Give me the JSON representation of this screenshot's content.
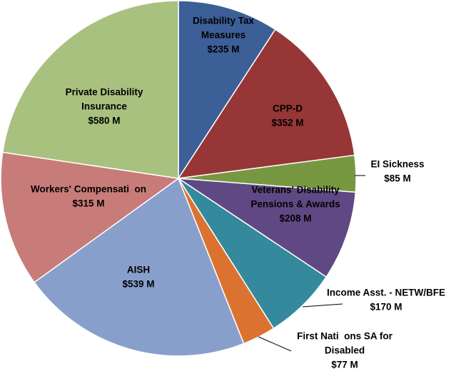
{
  "chart_data": {
    "type": "pie",
    "title": "",
    "slices": [
      {
        "label_lines": [
          "Disability Tax",
          "Measures"
        ],
        "value_label": "$235 M",
        "value": 235,
        "color": "#3C5F97"
      },
      {
        "label_lines": [
          "CPP-D"
        ],
        "value_label": "$352 M",
        "value": 352,
        "color": "#963636"
      },
      {
        "label_lines": [
          "EI Sickness"
        ],
        "value_label": "$85 M",
        "value": 85,
        "color": "#779841"
      },
      {
        "label_lines": [
          "Veterans' Disability",
          "Pensions & Awards"
        ],
        "value_label": "$208 M",
        "value": 208,
        "color": "#5F4883"
      },
      {
        "label_lines": [
          "Income Asst. - NETW/BFE"
        ],
        "value_label": "$170 M",
        "value": 170,
        "color": "#34899D"
      },
      {
        "label_lines": [
          "First Nati  ons SA for",
          "Disabled"
        ],
        "value_label": "$77 M",
        "value": 77,
        "color": "#DC7230"
      },
      {
        "label_lines": [
          "AISH"
        ],
        "value_label": "$539 M",
        "value": 539,
        "color": "#889FCC"
      },
      {
        "label_lines": [
          "Workers' Compensati  on"
        ],
        "value_label": "$315 M",
        "value": 315,
        "color": "#C87C7A"
      },
      {
        "label_lines": [
          "Private Disability",
          "Insurance"
        ],
        "value_label": "$580 M",
        "value": 580,
        "color": "#A8C17F"
      }
    ]
  }
}
